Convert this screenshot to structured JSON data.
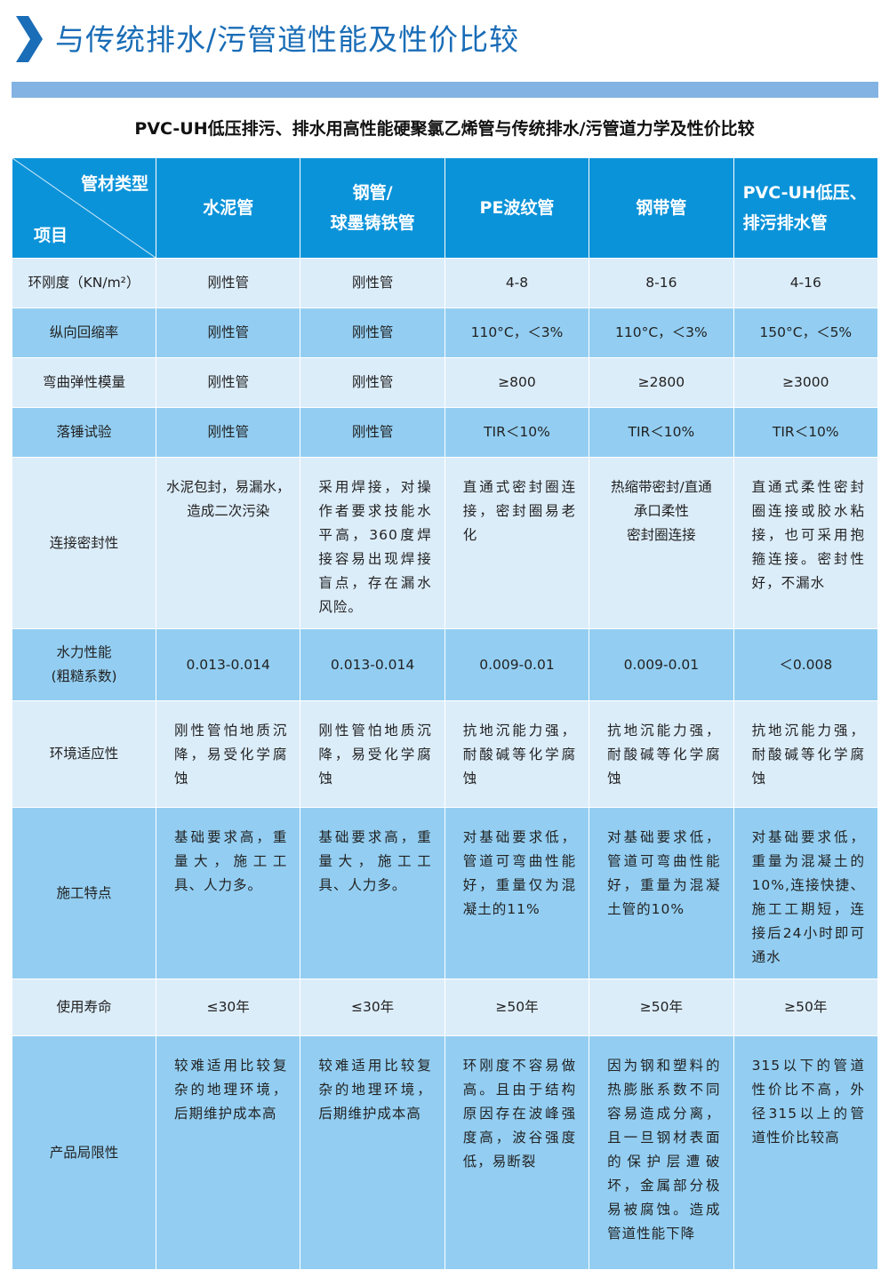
{
  "page": {
    "title": "与传统排水/污管道性能及性价比较",
    "subtitle": "PVC-UH低压排污、排水用高性能硬聚氯乙烯管与传统排水/污管道力学及性价比较",
    "colors": {
      "title": "#1a6db7",
      "band": "#82b3e2",
      "header": "#0b93d9",
      "row_light": "#dcedfa",
      "row_dark": "#93cef2"
    }
  },
  "table": {
    "corner_top": "管材类型",
    "corner_bottom": "项目",
    "columns": [
      "水泥管",
      "钢管/\n球墨铸铁管",
      "PE波纹管",
      "钢带管",
      "PVC-UH低压、\n排污排水管"
    ],
    "rows": [
      {
        "label": "环刚度（KN/m²）",
        "cells": [
          "刚性管",
          "刚性管",
          "4-8",
          "8-16",
          "4-16"
        ]
      },
      {
        "label": "纵向回缩率",
        "cells": [
          "刚性管",
          "刚性管",
          "110°C，＜3%",
          "110°C，＜3%",
          "150°C，＜5%"
        ]
      },
      {
        "label": "弯曲弹性模量",
        "cells": [
          "刚性管",
          "刚性管",
          "≥800",
          "≥2800",
          "≥3000"
        ]
      },
      {
        "label": "落锤试验",
        "cells": [
          "刚性管",
          "刚性管",
          "TIR＜10%",
          "TIR＜10%",
          "TIR＜10%"
        ]
      },
      {
        "label": "连接密封性",
        "cells": [
          "水泥包封，易漏水，造成二次污染",
          "采用焊接，对操作者要求技能水平高，360度焊接容易出现焊接盲点，存在漏水风险。",
          "直通式密封圈连接，密封圈易老化",
          "热缩带密封/直通\n承口柔性\n密封圈连接",
          "直通式柔性密封圈连接或胶水粘接，也可采用抱箍连接。密封性好，不漏水"
        ]
      },
      {
        "label": "水力性能\n(粗糙系数)",
        "cells": [
          "0.013-0.014",
          "0.013-0.014",
          "0.009-0.01",
          "0.009-0.01",
          "＜0.008"
        ]
      },
      {
        "label": "环境适应性",
        "cells": [
          "刚性管怕地质沉降，易受化学腐蚀",
          "刚性管怕地质沉降，易受化学腐蚀",
          "抗地沉能力强，耐酸碱等化学腐蚀",
          "抗地沉能力强，耐酸碱等化学腐蚀",
          "抗地沉能力强，耐酸碱等化学腐蚀"
        ]
      },
      {
        "label": "施工特点",
        "cells": [
          "基础要求高，重量大，施工工具、人力多。",
          "基础要求高，重量大，施工工具、人力多。",
          "对基础要求低，管道可弯曲性能好，重量仅为混凝土的11%",
          "对基础要求低，管道可弯曲性能好，重量为混凝土管的10%",
          "对基础要求低，重量为混凝土的10%,连接快捷、施工工期短，连接后24小时即可通水"
        ]
      },
      {
        "label": "使用寿命",
        "cells": [
          "≤30年",
          "≤30年",
          "≥50年",
          "≥50年",
          "≥50年"
        ]
      },
      {
        "label": "产品局限性",
        "cells": [
          "较难适用比较复杂的地理环境，后期维护成本高",
          "较难适用比较复杂的地理环境，后期维护成本高",
          "环刚度不容易做高。且由于结构原因存在波峰强度高，波谷强度低，易断裂",
          "因为钢和塑料的热膨胀系数不同容易造成分离，且一旦钢材表面的保护层遭破坏，金属部分极易被腐蚀。造成管道性能下降",
          "315以下的管道性价比不高，外径315以上的管道性价比较高"
        ]
      }
    ]
  }
}
